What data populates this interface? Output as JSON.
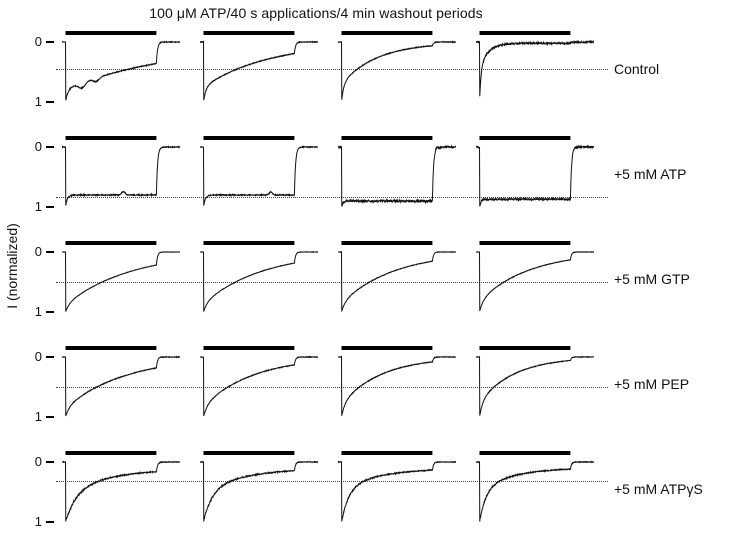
{
  "chart_data": {
    "type": "line",
    "title": "100 μM ATP/40 s applications/4 min washout periods",
    "ylabel": "I (normalized)",
    "y_tick_labels": [
      "0",
      "1"
    ],
    "y_axis": {
      "ticks": [
        0,
        1
      ],
      "range": [
        0,
        1
      ],
      "inverted": true
    },
    "application_s": 40,
    "washout_min": 4,
    "columns_per_row": 4,
    "application_window_frac": [
      0.03,
      0.8
    ],
    "rows": [
      {
        "label": "Control",
        "dotted_line_level": 0.45,
        "traces": [
          {
            "peak": 1,
            "fast_amp": 0.22,
            "fast_tau": 0.02,
            "slow_tau": 0.95,
            "plateau": 0.02,
            "noise": 0.012,
            "bumps": [
              [
                0.17,
                0.09,
                0.04
              ],
              [
                0.29,
                0.06,
                0.035
              ]
            ]
          },
          {
            "peak": 1,
            "fast_amp": 0.25,
            "fast_tau": 0.02,
            "slow_tau": 0.55,
            "plateau": 0.01,
            "noise": 0.012,
            "bumps": []
          },
          {
            "peak": 1,
            "fast_amp": 0.3,
            "fast_tau": 0.018,
            "slow_tau": 0.3,
            "plateau": 0.01,
            "noise": 0.012,
            "bumps": []
          },
          {
            "peak": 1,
            "fast_amp": 0.55,
            "fast_tau": 0.012,
            "slow_tau": 0.07,
            "plateau": 0.02,
            "noise": 0.028,
            "bumps": []
          }
        ]
      },
      {
        "label": "+5 mM ATP",
        "dotted_line_level": 0.84,
        "traces": [
          {
            "peak": 1,
            "fast_amp": 0.2,
            "fast_tau": 0.015,
            "slow_tau": 0.3,
            "plateau": 0.8,
            "noise": 0.014,
            "bumps": [
              [
                0.52,
                -0.06,
                0.02
              ]
            ]
          },
          {
            "peak": 1,
            "fast_amp": 0.2,
            "fast_tau": 0.015,
            "slow_tau": 0.3,
            "plateau": 0.8,
            "noise": 0.014,
            "bumps": [
              [
                0.6,
                -0.05,
                0.018
              ]
            ]
          },
          {
            "peak": 1,
            "fast_amp": 0.1,
            "fast_tau": 0.012,
            "slow_tau": 0.3,
            "plateau": 0.9,
            "noise": 0.035,
            "bumps": []
          },
          {
            "peak": 1,
            "fast_amp": 0.13,
            "fast_tau": 0.012,
            "slow_tau": 0.3,
            "plateau": 0.87,
            "noise": 0.03,
            "bumps": []
          }
        ]
      },
      {
        "label": "+5 mM GTP",
        "dotted_line_level": 0.5,
        "traces": [
          {
            "peak": 1,
            "fast_amp": 0.12,
            "fast_tau": 0.03,
            "slow_tau": 0.55,
            "plateau": 0.0,
            "noise": 0.006,
            "bumps": []
          },
          {
            "peak": 1,
            "fast_amp": 0.14,
            "fast_tau": 0.03,
            "slow_tau": 0.5,
            "plateau": 0.0,
            "noise": 0.006,
            "bumps": []
          },
          {
            "peak": 1,
            "fast_amp": 0.15,
            "fast_tau": 0.03,
            "slow_tau": 0.45,
            "plateau": 0.0,
            "noise": 0.007,
            "bumps": []
          },
          {
            "peak": 1,
            "fast_amp": 0.18,
            "fast_tau": 0.03,
            "slow_tau": 0.42,
            "plateau": 0.0,
            "noise": 0.007,
            "bumps": []
          }
        ]
      },
      {
        "label": "+5 mM PEP",
        "dotted_line_level": 0.5,
        "traces": [
          {
            "peak": 1,
            "fast_amp": 0.15,
            "fast_tau": 0.03,
            "slow_tau": 0.5,
            "plateau": 0.0,
            "noise": 0.01,
            "bumps": []
          },
          {
            "peak": 1,
            "fast_amp": 0.18,
            "fast_tau": 0.03,
            "slow_tau": 0.42,
            "plateau": 0.0,
            "noise": 0.01,
            "bumps": []
          },
          {
            "peak": 1,
            "fast_amp": 0.22,
            "fast_tau": 0.028,
            "slow_tau": 0.34,
            "plateau": 0.0,
            "noise": 0.01,
            "bumps": []
          },
          {
            "peak": 1,
            "fast_amp": 0.25,
            "fast_tau": 0.026,
            "slow_tau": 0.3,
            "plateau": 0.0,
            "noise": 0.01,
            "bumps": []
          }
        ]
      },
      {
        "label": "+5 mM ATPγS",
        "dotted_line_level": 0.32,
        "traces": [
          {
            "peak": 1,
            "fast_amp": 0.5,
            "fast_tau": 0.09,
            "slow_tau": 0.38,
            "plateau": 0.11,
            "noise": 0.012,
            "noise_depth": 0.03,
            "bumps": []
          },
          {
            "peak": 1,
            "fast_amp": 0.52,
            "fast_tau": 0.07,
            "slow_tau": 0.36,
            "plateau": 0.1,
            "noise": 0.012,
            "noise_depth": 0.03,
            "bumps": []
          },
          {
            "peak": 1,
            "fast_amp": 0.55,
            "fast_tau": 0.06,
            "slow_tau": 0.33,
            "plateau": 0.1,
            "noise": 0.012,
            "noise_depth": 0.028,
            "bumps": []
          },
          {
            "peak": 1,
            "fast_amp": 0.55,
            "fast_tau": 0.055,
            "slow_tau": 0.3,
            "plateau": 0.09,
            "noise": 0.012,
            "noise_depth": 0.028,
            "bumps": []
          }
        ]
      }
    ]
  }
}
